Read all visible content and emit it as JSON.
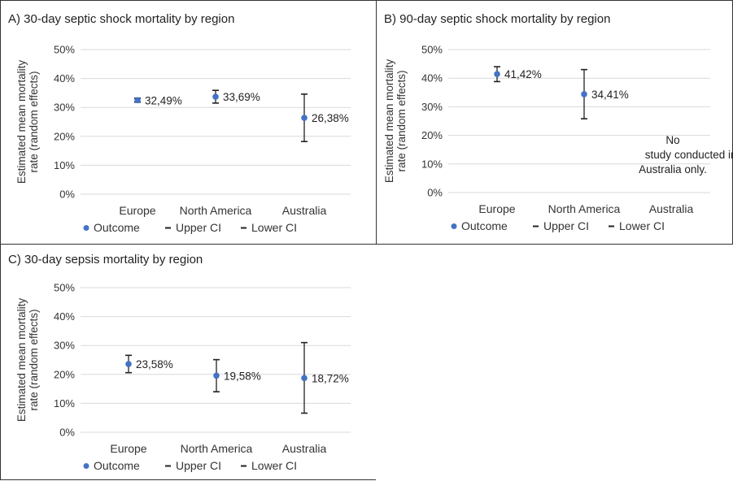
{
  "colors": {
    "outcome": "#4472C4",
    "ci": "#222222",
    "grid": "#d9d9d9",
    "border": "#333333"
  },
  "legend": {
    "outcome": "Outcome",
    "upper": "Upper CI",
    "lower": "Lower CI"
  },
  "chart_data": [
    {
      "type": "scatter",
      "title": "A) 30-day septic shock mortality by region",
      "ylabel": "Estimated mean mortality rate (random effects)",
      "xlabel": "",
      "ylim": [
        0,
        50
      ],
      "yticks": [
        "0%",
        "10%",
        "20%",
        "30%",
        "40%",
        "50%"
      ],
      "categories": [
        "Europe",
        "North America",
        "Australia"
      ],
      "grid": true,
      "legend_position": "bottom",
      "series": [
        {
          "name": "Outcome",
          "values": [
            32.49,
            33.69,
            26.38
          ]
        },
        {
          "name": "Upper CI",
          "values": [
            33.2,
            35.9,
            34.6
          ]
        },
        {
          "name": "Lower CI",
          "values": [
            31.8,
            31.5,
            18.2
          ]
        }
      ],
      "data_labels": [
        "32,49%",
        "33,69%",
        "26,38%"
      ]
    },
    {
      "type": "scatter",
      "title": "B) 90-day septic shock mortality by region",
      "ylabel": "Estimated mean mortality rate (random effects)",
      "xlabel": "",
      "ylim": [
        0,
        50
      ],
      "yticks": [
        "0%",
        "10%",
        "20%",
        "30%",
        "40%",
        "50%"
      ],
      "categories": [
        "Europe",
        "North America",
        "Australia"
      ],
      "grid": true,
      "legend_position": "bottom",
      "series": [
        {
          "name": "Outcome",
          "values": [
            41.42,
            34.41,
            null
          ]
        },
        {
          "name": "Upper CI",
          "values": [
            44.0,
            43.0,
            null
          ]
        },
        {
          "name": "Lower CI",
          "values": [
            38.8,
            25.8,
            null
          ]
        }
      ],
      "data_labels": [
        "41,42%",
        "34,41%",
        ""
      ],
      "annotation": [
        "No",
        "study",
        "conducted in",
        "Australia only."
      ]
    },
    {
      "type": "scatter",
      "title": "C) 30-day sepsis mortality by region",
      "ylabel": "Estimated mean mortality rate (random effects)",
      "xlabel": "",
      "ylim": [
        0,
        50
      ],
      "yticks": [
        "0%",
        "10%",
        "20%",
        "30%",
        "40%",
        "50%"
      ],
      "categories": [
        "Europe",
        "North America",
        "Australia"
      ],
      "grid": true,
      "legend_position": "bottom",
      "series": [
        {
          "name": "Outcome",
          "values": [
            23.58,
            19.58,
            18.72
          ]
        },
        {
          "name": "Upper CI",
          "values": [
            26.6,
            25.1,
            31.0
          ]
        },
        {
          "name": "Lower CI",
          "values": [
            20.6,
            14.0,
            6.6
          ]
        }
      ],
      "data_labels": [
        "23,58%",
        "19,58%",
        "18,72%"
      ]
    }
  ]
}
